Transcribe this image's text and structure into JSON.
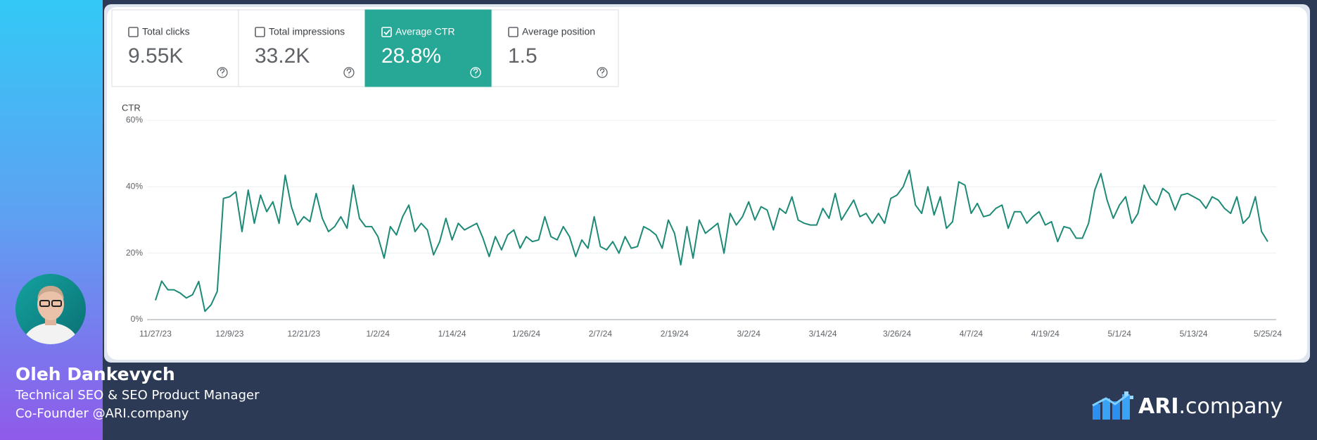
{
  "metrics": [
    {
      "label": "Total clicks",
      "value": "9.55K",
      "checked": false
    },
    {
      "label": "Total impressions",
      "value": "33.2K",
      "checked": false
    },
    {
      "label": "Average CTR",
      "value": "28.8%",
      "checked": true
    },
    {
      "label": "Average position",
      "value": "1.5",
      "checked": false
    }
  ],
  "accent": "#27a897",
  "chart_data": {
    "type": "line",
    "y_label": "CTR",
    "color": "#1c8a76",
    "x": [
      "11/27/23",
      "11/28/23",
      "11/29/23",
      "11/30/23",
      "12/1/23",
      "12/2/23",
      "12/3/23",
      "12/4/23",
      "12/5/23",
      "12/6/23",
      "12/7/23",
      "12/8/23",
      "12/9/23",
      "12/10/23",
      "12/11/23",
      "12/12/23",
      "12/13/23",
      "12/14/23",
      "12/15/23",
      "12/16/23",
      "12/17/23",
      "12/18/23",
      "12/19/23",
      "12/20/23",
      "12/21/23",
      "12/22/23",
      "12/23/23",
      "12/24/23",
      "12/25/23",
      "12/26/23",
      "12/27/23",
      "12/28/23",
      "12/29/23",
      "12/30/23",
      "12/31/23",
      "1/1/24",
      "1/2/24",
      "1/3/24",
      "1/4/24",
      "1/5/24",
      "1/6/24",
      "1/7/24",
      "1/8/24",
      "1/9/24",
      "1/10/24",
      "1/11/24",
      "1/12/24",
      "1/13/24",
      "1/14/24",
      "1/15/24",
      "1/16/24",
      "1/17/24",
      "1/18/24",
      "1/19/24",
      "1/20/24",
      "1/21/24",
      "1/22/24",
      "1/23/24",
      "1/24/24",
      "1/25/24",
      "1/26/24",
      "1/27/24",
      "1/28/24",
      "1/29/24",
      "1/30/24",
      "1/31/24",
      "2/1/24",
      "2/2/24",
      "2/3/24",
      "2/4/24",
      "2/5/24",
      "2/6/24",
      "2/7/24",
      "2/8/24",
      "2/9/24",
      "2/10/24",
      "2/11/24",
      "2/12/24",
      "2/13/24",
      "2/14/24",
      "2/15/24",
      "2/16/24",
      "2/17/24",
      "2/18/24",
      "2/19/24",
      "2/20/24",
      "2/21/24",
      "2/22/24",
      "2/23/24",
      "2/24/24",
      "2/25/24",
      "2/26/24",
      "2/27/24",
      "2/28/24",
      "2/29/24",
      "3/1/24",
      "3/2/24",
      "3/3/24",
      "3/4/24",
      "3/5/24",
      "3/6/24",
      "3/7/24",
      "3/8/24",
      "3/9/24",
      "3/10/24",
      "3/11/24",
      "3/12/24",
      "3/13/24",
      "3/14/24",
      "3/15/24",
      "3/16/24",
      "3/17/24",
      "3/18/24",
      "3/19/24",
      "3/20/24",
      "3/21/24",
      "3/22/24",
      "3/23/24",
      "3/24/24",
      "3/25/24",
      "3/26/24",
      "3/27/24",
      "3/28/24",
      "3/29/24",
      "3/30/24",
      "3/31/24",
      "4/1/24",
      "4/2/24",
      "4/3/24",
      "4/4/24",
      "4/5/24",
      "4/6/24",
      "4/7/24",
      "4/8/24",
      "4/9/24",
      "4/10/24",
      "4/11/24",
      "4/12/24",
      "4/13/24",
      "4/14/24",
      "4/15/24",
      "4/16/24",
      "4/17/24",
      "4/18/24",
      "4/19/24",
      "4/20/24",
      "4/21/24",
      "4/22/24",
      "4/23/24",
      "4/24/24",
      "4/25/24",
      "4/26/24",
      "4/27/24",
      "4/28/24",
      "4/29/24",
      "4/30/24",
      "5/1/24",
      "5/2/24",
      "5/3/24",
      "5/4/24",
      "5/5/24",
      "5/6/24",
      "5/7/24",
      "5/8/24",
      "5/9/24",
      "5/10/24",
      "5/11/24",
      "5/12/24",
      "5/13/24",
      "5/14/24",
      "5/15/24",
      "5/16/24",
      "5/17/24",
      "5/18/24",
      "5/19/24",
      "5/20/24",
      "5/21/24",
      "5/22/24",
      "5/23/24",
      "5/24/24",
      "5/25/24"
    ],
    "values": [
      5.8,
      11.6,
      9,
      9,
      8,
      6.5,
      7.5,
      11.5,
      2.5,
      4.5,
      8.5,
      36.5,
      37,
      38.5,
      26.5,
      39,
      29,
      37.5,
      32.5,
      35.5,
      29,
      43.5,
      34,
      28.5,
      31,
      29.5,
      38,
      30.5,
      26.5,
      28,
      31,
      27.5,
      40.5,
      30.5,
      28,
      28,
      25,
      18.5,
      28,
      25.5,
      31,
      34.5,
      26.5,
      29,
      27,
      19.5,
      23.5,
      30.5,
      24,
      29,
      27,
      28,
      29,
      24.5,
      19,
      25,
      21,
      25.5,
      27,
      21.5,
      25,
      23.5,
      24,
      31,
      25,
      24,
      28,
      25,
      19,
      24,
      21.5,
      31,
      22,
      21,
      23.5,
      20,
      25,
      21.5,
      22,
      28,
      27,
      25.5,
      21.5,
      30,
      26,
      16.5,
      28,
      18.5,
      30,
      26,
      27.5,
      29,
      20,
      32,
      28.5,
      31,
      35.5,
      30,
      34,
      33,
      27,
      33.5,
      32,
      37,
      30,
      29,
      28.5,
      28.5,
      33.5,
      30.5,
      38,
      30,
      33,
      36,
      31,
      32,
      29,
      32,
      29,
      36.5,
      37.5,
      40,
      45,
      34.5,
      32,
      40,
      31.5,
      37,
      27.5,
      29.5,
      41.5,
      40.5,
      32,
      35,
      31,
      31.5,
      33.5,
      34.5,
      27.5,
      32.5,
      32.5,
      29,
      31,
      32.5,
      28.5,
      29.5,
      23.5,
      28,
      27.5,
      24.5,
      24.5,
      29,
      39,
      44,
      36,
      30.5,
      34.5,
      37,
      29,
      32,
      40.5,
      36.5,
      34.5,
      39.5,
      38,
      33,
      37.5,
      38,
      37,
      36,
      33.5,
      37,
      36,
      33.5,
      32,
      37,
      29,
      31,
      37,
      26.5,
      23.5
    ],
    "ylim": [
      0,
      60
    ],
    "yticks": [
      {
        "value": 0,
        "label": "0%"
      },
      {
        "value": 20,
        "label": "20%"
      },
      {
        "value": 40,
        "label": "40%"
      },
      {
        "value": 60,
        "label": "60%"
      }
    ],
    "xticks": [
      "11/27/23",
      "12/9/23",
      "12/21/23",
      "1/2/24",
      "1/14/24",
      "1/26/24",
      "2/7/24",
      "2/19/24",
      "3/2/24",
      "3/14/24",
      "3/26/24",
      "4/7/24",
      "4/19/24",
      "5/1/24",
      "5/13/24",
      "5/25/24"
    ],
    "grid": true
  },
  "profile": {
    "name": "Oleh Dankevych",
    "lines": [
      "Technical SEO & SEO Product Manager",
      "Co-Founder @ARI.company"
    ]
  },
  "logo": {
    "brand": "ARI",
    "suffix": ".company"
  }
}
